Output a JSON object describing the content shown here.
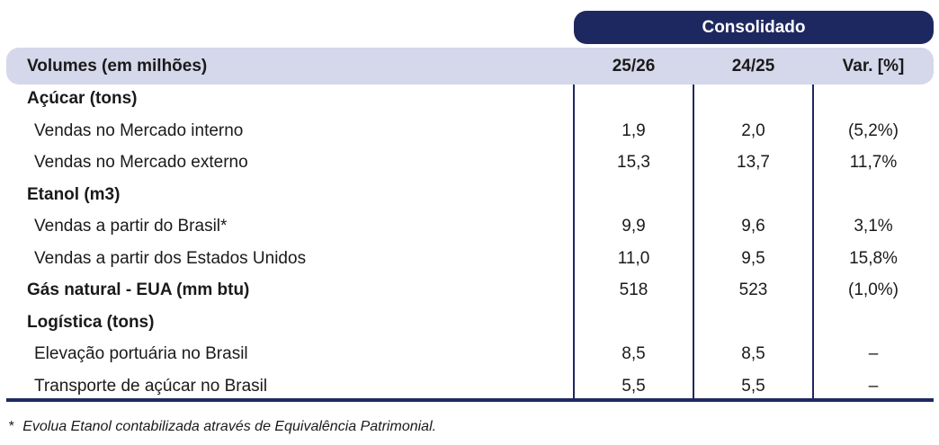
{
  "header": {
    "group_label": "Consolidado",
    "row_label": "Volumes (em milhões)",
    "col1": "25/26",
    "col2": "24/25",
    "col3": "Var. [%]"
  },
  "rows": [
    {
      "label": "Açúcar (tons)",
      "v1": "",
      "v2": "",
      "v3": ""
    },
    {
      "label": "Vendas no Mercado interno",
      "v1": "1,9",
      "v2": "2,0",
      "v3": "(5,2%)"
    },
    {
      "label": "Vendas no Mercado externo",
      "v1": "15,3",
      "v2": "13,7",
      "v3": "11,7%"
    },
    {
      "label": "Etanol (m3)",
      "v1": "",
      "v2": "",
      "v3": ""
    },
    {
      "label": "Vendas a partir do Brasil*",
      "v1": "9,9",
      "v2": "9,6",
      "v3": "3,1%"
    },
    {
      "label": "Vendas a partir dos Estados Unidos",
      "v1": "11,0",
      "v2": "9,5",
      "v3": "15,8%"
    },
    {
      "label": "Gás natural - EUA (mm btu)",
      "v1": "518",
      "v2": "523",
      "v3": "(1,0%)"
    },
    {
      "label": "Logística (tons)",
      "v1": "",
      "v2": "",
      "v3": ""
    },
    {
      "label": "Elevação portuária no Brasil",
      "v1": "8,5",
      "v2": "8,5",
      "v3": "–"
    },
    {
      "label": "Transporte de açúcar no Brasil",
      "v1": "5,5",
      "v2": "5,5",
      "v3": "–"
    }
  ],
  "footnote": {
    "mark": "*",
    "text": "Evolua Etanol contabilizada através de Equivalência Patrimonial."
  },
  "colors": {
    "navy": "#1e2860",
    "header_band": "#d5d7ea"
  }
}
